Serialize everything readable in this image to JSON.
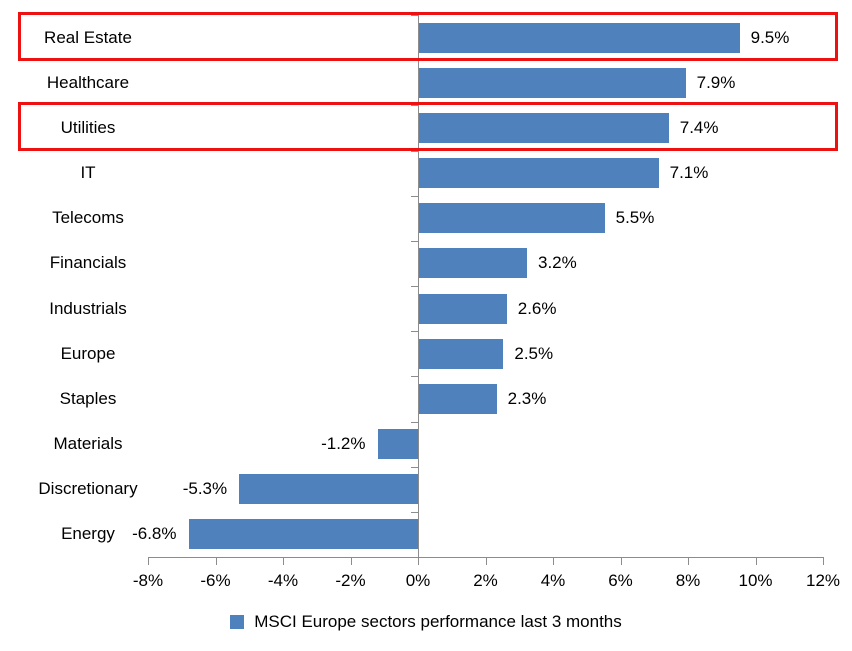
{
  "chart_data": {
    "type": "bar",
    "orientation": "horizontal",
    "title": "",
    "categories": [
      "Real Estate",
      "Healthcare",
      "Utilities",
      "IT",
      "Telecoms",
      "Financials",
      "Industrials",
      "Europe",
      "Staples",
      "Materials",
      "Discretionary",
      "Energy"
    ],
    "values": [
      9.5,
      7.9,
      7.4,
      7.1,
      5.5,
      3.2,
      2.6,
      2.5,
      2.3,
      -1.2,
      -5.3,
      -6.8
    ],
    "value_labels": [
      "9.5%",
      "7.9%",
      "7.4%",
      "7.1%",
      "5.5%",
      "3.2%",
      "2.6%",
      "2.5%",
      "2.3%",
      "-1.2%",
      "-5.3%",
      "-6.8%"
    ],
    "x_tick_values": [
      -8,
      -6,
      -4,
      -2,
      0,
      2,
      4,
      6,
      8,
      10,
      12
    ],
    "x_tick_labels": [
      "-8%",
      "-6%",
      "-4%",
      "-2%",
      "0%",
      "2%",
      "4%",
      "6%",
      "8%",
      "10%",
      "12%"
    ],
    "xlim": [
      -8,
      12
    ],
    "grid": false,
    "legend_position": "bottom",
    "legend": "MSCI Europe sectors performance last 3 months",
    "bar_color": "#4F81BD",
    "axis_color": "#8C8C8C",
    "text_color": "#000000",
    "highlight_color": "#EE1111",
    "highlighted_categories": [
      "Real Estate",
      "Utilities"
    ]
  }
}
